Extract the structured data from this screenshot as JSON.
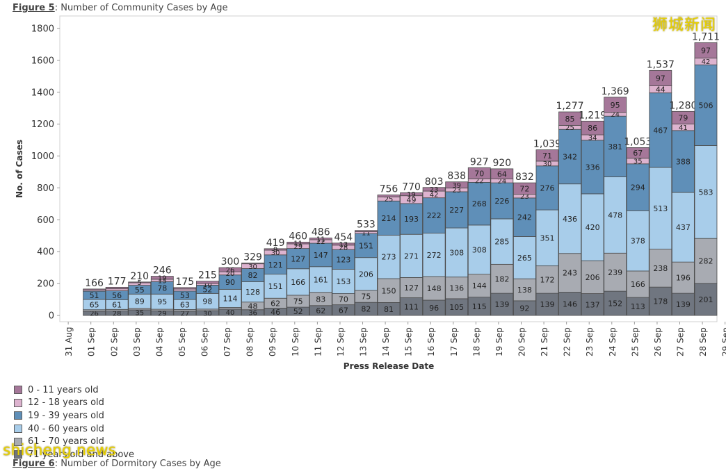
{
  "caption": {
    "figure": "Figure 5",
    "text": ": Number of Community Cases by Age"
  },
  "next_caption": {
    "figure": "Figure 6",
    "text": ": Number of Dormitory Cases by Age"
  },
  "watermarks": {
    "top": "狮城新闻",
    "bottom": "shicheng.news"
  },
  "colors": {
    "0-11": "#a57799",
    "12-18": "#ddb3cf",
    "19-39": "#5f8fb8",
    "40-60": "#a8cdea",
    "61-70": "#a8abb2",
    "71+": "#707680",
    "bar_outline": "#4a4a4a",
    "grid": "#e6e6e6"
  },
  "chart_data": {
    "type": "bar",
    "stacked": true,
    "xlabel": "Press Release Date",
    "ylabel": "No. of Cases",
    "ylim": [
      0,
      1850
    ],
    "yticks": [
      0,
      200,
      400,
      600,
      800,
      1000,
      1200,
      1400,
      1600,
      1800
    ],
    "grid": false,
    "legend_position": "bottom-left",
    "x_tick_labels": [
      "31 Aug",
      "01 Sep",
      "02 Sep",
      "03 Sep",
      "04 Sep",
      "05 Sep",
      "06 Sep",
      "07 Sep",
      "08 Sep",
      "09 Sep",
      "10 Sep",
      "11 Sep",
      "12 Sep",
      "13 Sep",
      "14 Sep",
      "15 Sep",
      "16 Sep",
      "17 Sep",
      "18 Sep",
      "19 Sep",
      "20 Sep",
      "21 Sep",
      "22 Sep",
      "23 Sep",
      "24 Sep",
      "25 Sep",
      "26 Sep",
      "27 Sep",
      "28 Sep",
      "29 Sep"
    ],
    "categories": [
      "01 Sep",
      "02 Sep",
      "03 Sep",
      "04 Sep",
      "05 Sep",
      "06 Sep",
      "07 Sep",
      "08 Sep",
      "09 Sep",
      "10 Sep",
      "11 Sep",
      "12 Sep",
      "13 Sep",
      "14 Sep",
      "15 Sep",
      "16 Sep",
      "17 Sep",
      "18 Sep",
      "19 Sep",
      "20 Sep",
      "21 Sep",
      "22 Sep",
      "23 Sep",
      "24 Sep",
      "25 Sep",
      "26 Sep",
      "27 Sep",
      "28 Sep"
    ],
    "totals": [
      "166",
      "177",
      "210",
      "246",
      "175",
      "215",
      "300",
      "329",
      "419",
      "460",
      "486",
      "454",
      "533",
      "756",
      "770",
      "803",
      "838",
      "927",
      "920",
      "832",
      "1,039",
      "1,277",
      "1,219",
      "1,369",
      "1,053",
      "1,537",
      "1,280",
      "1,711"
    ],
    "series": [
      {
        "name": "71 years old and above",
        "color_key": "71+",
        "values": [
          26,
          28,
          35,
          29,
          27,
          30,
          40,
          36,
          46,
          52,
          62,
          67,
          82,
          81,
          111,
          96,
          105,
          115,
          139,
          92,
          139,
          146,
          137,
          152,
          113,
          178,
          139,
          201
        ]
      },
      {
        "name": "61 - 70 years old",
        "color_key": "61-70",
        "values": [
          10,
          10,
          10,
          10,
          10,
          10,
          10,
          48,
          62,
          75,
          83,
          70,
          75,
          150,
          127,
          148,
          136,
          144,
          182,
          138,
          172,
          243,
          206,
          239,
          166,
          238,
          196,
          282
        ]
      },
      {
        "name": "40 - 60 years old",
        "color_key": "40-60",
        "values": [
          65,
          61,
          89,
          95,
          63,
          98,
          114,
          128,
          151,
          166,
          161,
          153,
          206,
          273,
          271,
          272,
          308,
          308,
          285,
          265,
          351,
          436,
          420,
          478,
          378,
          513,
          437,
          583
        ]
      },
      {
        "name": "19 - 39 years old",
        "color_key": "19-39",
        "values": [
          51,
          56,
          55,
          78,
          53,
          52,
          90,
          82,
          121,
          127,
          147,
          123,
          151,
          214,
          193,
          222,
          227,
          268,
          226,
          242,
          276,
          342,
          336,
          381,
          294,
          467,
          388,
          506
        ]
      },
      {
        "name": "12 - 18 years old",
        "color_key": "12-18",
        "values": [
          8,
          12,
          16,
          15,
          13,
          10,
          20,
          30,
          30,
          29,
          22,
          28,
          11,
          25,
          49,
          42,
          23,
          22,
          24,
          23,
          30,
          25,
          34,
          24,
          35,
          44,
          41,
          42
        ]
      },
      {
        "name": "0 - 11 years old",
        "color_key": "0-11",
        "values": [
          6,
          10,
          5,
          19,
          9,
          15,
          26,
          5,
          9,
          11,
          11,
          13,
          8,
          13,
          19,
          23,
          39,
          70,
          64,
          72,
          71,
          85,
          86,
          95,
          67,
          97,
          79,
          97
        ]
      }
    ],
    "segment_labels_shown": {
      "71+": [
        true,
        true,
        true,
        true,
        true,
        true,
        true,
        true,
        true,
        true,
        true,
        true,
        true,
        true,
        true,
        true,
        true,
        true,
        true,
        true,
        true,
        true,
        true,
        true,
        true,
        true,
        true,
        true
      ],
      "61-70": [
        false,
        false,
        false,
        false,
        false,
        false,
        false,
        true,
        true,
        true,
        true,
        true,
        true,
        true,
        true,
        true,
        true,
        true,
        true,
        true,
        true,
        true,
        true,
        true,
        true,
        true,
        true,
        true
      ],
      "40-60": [
        true,
        true,
        true,
        true,
        true,
        true,
        true,
        true,
        true,
        true,
        true,
        true,
        true,
        true,
        true,
        true,
        true,
        true,
        true,
        true,
        true,
        true,
        true,
        true,
        true,
        true,
        true,
        true
      ],
      "19-39": [
        true,
        true,
        true,
        true,
        true,
        true,
        true,
        true,
        true,
        true,
        true,
        true,
        true,
        true,
        true,
        true,
        true,
        true,
        true,
        true,
        true,
        true,
        true,
        true,
        true,
        true,
        true,
        true
      ],
      "12-18": [
        false,
        false,
        false,
        true,
        false,
        true,
        true,
        true,
        true,
        true,
        true,
        true,
        true,
        true,
        true,
        true,
        true,
        true,
        true,
        true,
        true,
        true,
        true,
        true,
        true,
        true,
        true,
        true
      ],
      "0-11": [
        false,
        false,
        true,
        true,
        false,
        false,
        true,
        false,
        true,
        true,
        true,
        true,
        false,
        false,
        true,
        true,
        true,
        true,
        true,
        true,
        true,
        true,
        true,
        true,
        true,
        true,
        true,
        true
      ]
    }
  },
  "legend": {
    "items": [
      {
        "label": "0 - 11 years old",
        "color_key": "0-11"
      },
      {
        "label": "12 - 18 years old",
        "color_key": "12-18"
      },
      {
        "label": "19 - 39 years old",
        "color_key": "19-39"
      },
      {
        "label": "40 - 60 years old",
        "color_key": "40-60"
      },
      {
        "label": "61 - 70 years old",
        "color_key": "61-70"
      },
      {
        "label": "71 years old and above",
        "color_key": "71+"
      }
    ]
  }
}
